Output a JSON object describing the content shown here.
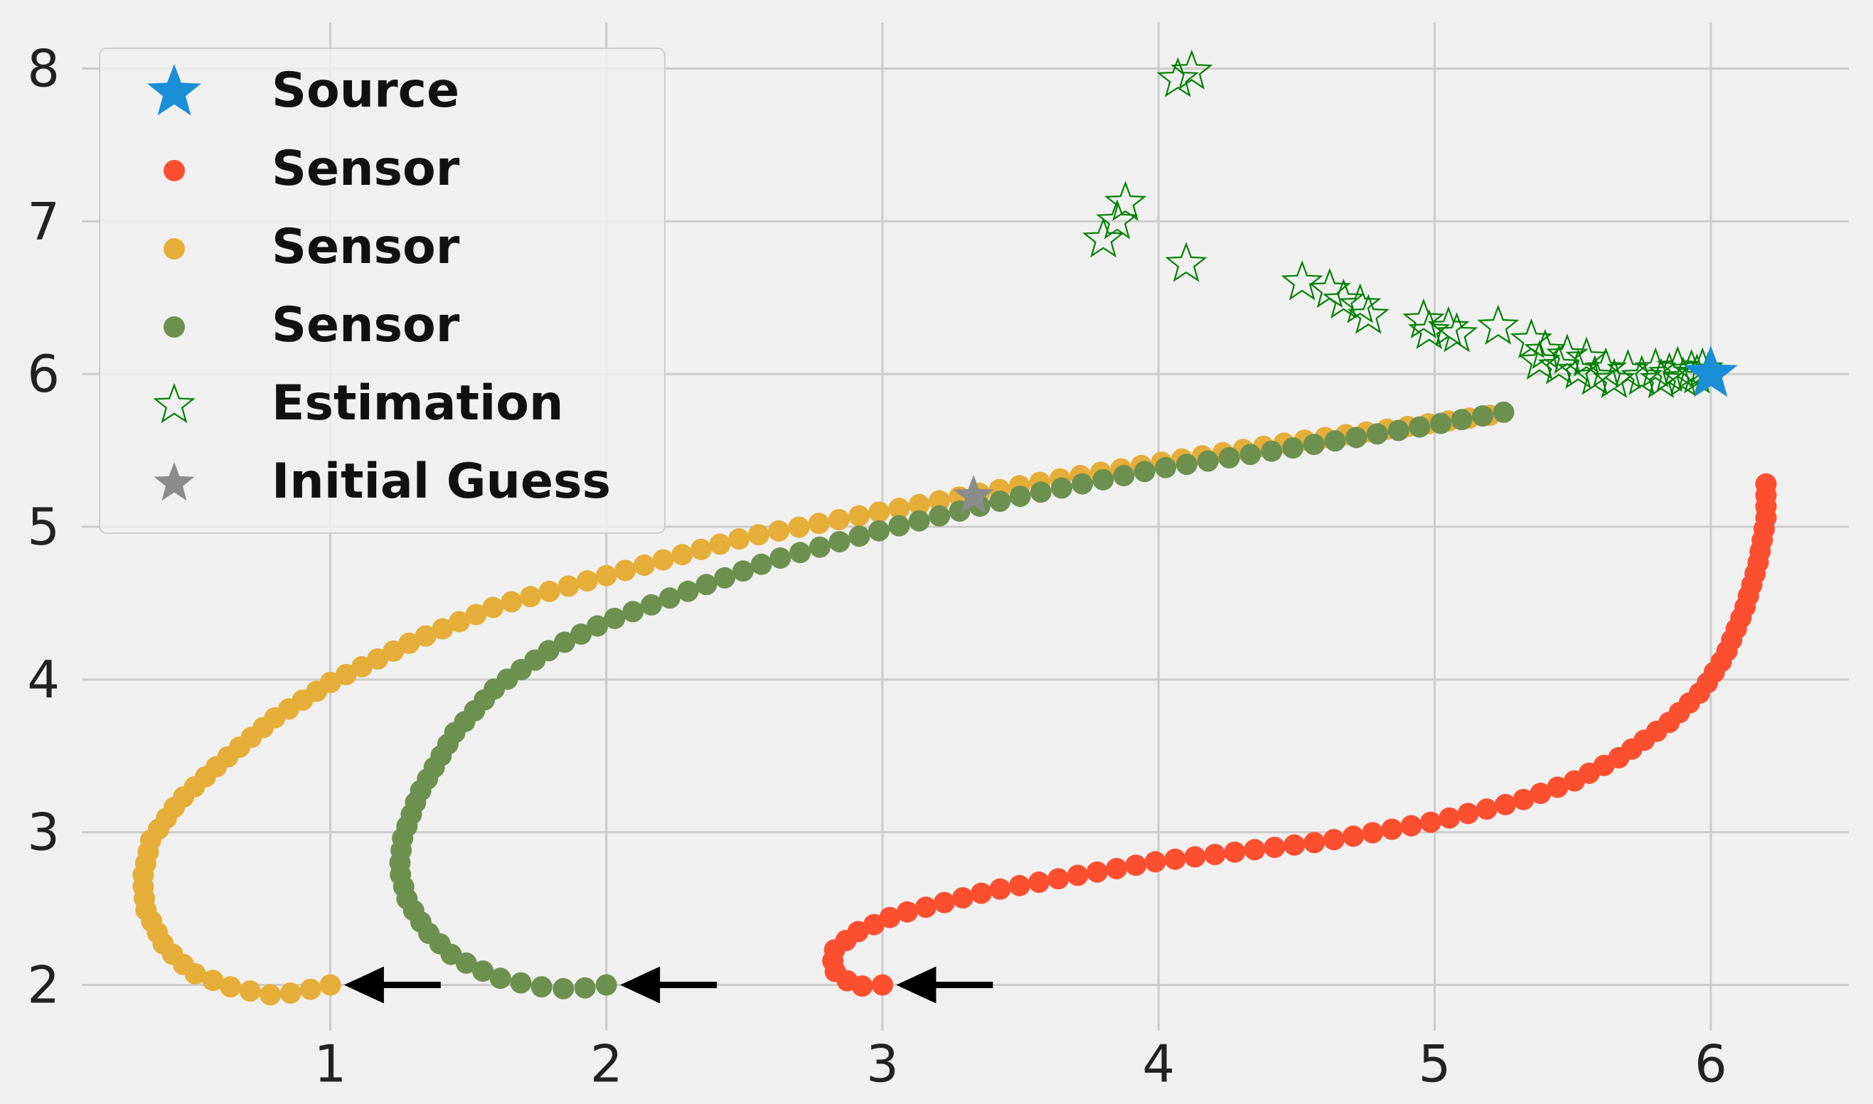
{
  "chart_data": {
    "type": "scatter",
    "xlim": [
      0.1,
      6.5
    ],
    "ylim": [
      1.7,
      8.3
    ],
    "x_ticks": [
      1,
      2,
      3,
      4,
      5,
      6
    ],
    "y_ticks": [
      2,
      3,
      4,
      5,
      6,
      7,
      8
    ],
    "x_tick_labels": [
      "1",
      "2",
      "3",
      "4",
      "5",
      "6"
    ],
    "y_tick_labels": [
      "2",
      "3",
      "4",
      "5",
      "6",
      "7",
      "8"
    ],
    "grid": true,
    "legend_position": "top-left",
    "colors": {
      "source": "#1a8fd8",
      "sensor_1": "#fc4f30",
      "sensor_2": "#e5ae38",
      "sensor_3": "#6d904f",
      "estimation": "#008000",
      "initial_guess": "#8b8b8b",
      "grid": "#cbcbcb",
      "background": "#f0f0f0"
    },
    "series": [
      {
        "name": "Source",
        "marker": "star-filled",
        "points": [
          [
            6.0,
            6.0
          ]
        ]
      },
      {
        "name": "Sensor",
        "marker": "circle",
        "color_key": "sensor_1",
        "anchors": [
          [
            3.0,
            2.0
          ],
          [
            2.9,
            1.99
          ],
          [
            2.82,
            2.1
          ],
          [
            2.82,
            2.22
          ],
          [
            2.9,
            2.34
          ],
          [
            3.05,
            2.46
          ],
          [
            3.4,
            2.62
          ],
          [
            4.0,
            2.81
          ],
          [
            4.6,
            2.94
          ],
          [
            5.0,
            3.07
          ],
          [
            5.3,
            3.2
          ],
          [
            5.5,
            3.33
          ],
          [
            5.68,
            3.5
          ],
          [
            5.85,
            3.72
          ],
          [
            5.97,
            3.93
          ],
          [
            6.05,
            4.15
          ],
          [
            6.12,
            4.45
          ],
          [
            6.17,
            4.75
          ],
          [
            6.2,
            5.05
          ],
          [
            6.2,
            5.28
          ]
        ],
        "count": 75
      },
      {
        "name": "Sensor",
        "marker": "circle",
        "color_key": "sensor_2",
        "anchors": [
          [
            1.0,
            2.0
          ],
          [
            0.9,
            1.96
          ],
          [
            0.8,
            1.93
          ],
          [
            0.65,
            1.98
          ],
          [
            0.5,
            2.08
          ],
          [
            0.4,
            2.25
          ],
          [
            0.33,
            2.5
          ],
          [
            0.32,
            2.7
          ],
          [
            0.35,
            2.95
          ],
          [
            0.45,
            3.2
          ],
          [
            0.6,
            3.45
          ],
          [
            0.8,
            3.75
          ],
          [
            1.0,
            3.98
          ],
          [
            1.3,
            4.25
          ],
          [
            1.6,
            4.48
          ],
          [
            2.0,
            4.68
          ],
          [
            2.5,
            4.93
          ],
          [
            3.0,
            5.1
          ],
          [
            3.5,
            5.27
          ],
          [
            4.0,
            5.42
          ],
          [
            4.5,
            5.56
          ],
          [
            5.0,
            5.68
          ],
          [
            5.2,
            5.73
          ]
        ],
        "count": 96
      },
      {
        "name": "Sensor",
        "marker": "circle",
        "color_key": "sensor_3",
        "anchors": [
          [
            2.0,
            2.0
          ],
          [
            1.88,
            1.97
          ],
          [
            1.75,
            1.99
          ],
          [
            1.6,
            2.05
          ],
          [
            1.45,
            2.18
          ],
          [
            1.35,
            2.35
          ],
          [
            1.28,
            2.55
          ],
          [
            1.25,
            2.75
          ],
          [
            1.26,
            2.95
          ],
          [
            1.32,
            3.25
          ],
          [
            1.45,
            3.65
          ],
          [
            1.6,
            3.95
          ],
          [
            1.8,
            4.2
          ],
          [
            2.0,
            4.38
          ],
          [
            2.3,
            4.58
          ],
          [
            2.6,
            4.78
          ],
          [
            3.0,
            4.98
          ],
          [
            3.5,
            5.2
          ],
          [
            4.0,
            5.38
          ],
          [
            4.5,
            5.52
          ],
          [
            5.0,
            5.67
          ],
          [
            5.25,
            5.75
          ]
        ],
        "count": 84
      },
      {
        "name": "Estimation",
        "marker": "star-hollow",
        "points": [
          [
            4.07,
            7.93
          ],
          [
            4.12,
            7.98
          ],
          [
            3.85,
            7.0
          ],
          [
            3.88,
            7.12
          ],
          [
            3.8,
            6.88
          ],
          [
            4.1,
            6.72
          ],
          [
            4.52,
            6.6
          ],
          [
            4.62,
            6.55
          ],
          [
            4.67,
            6.48
          ],
          [
            4.73,
            6.45
          ],
          [
            4.76,
            6.38
          ],
          [
            4.96,
            6.35
          ],
          [
            4.98,
            6.28
          ],
          [
            5.05,
            6.3
          ],
          [
            5.08,
            6.26
          ],
          [
            5.23,
            6.31
          ],
          [
            5.35,
            6.22
          ],
          [
            5.4,
            6.15
          ],
          [
            5.38,
            6.08
          ],
          [
            5.45,
            6.05
          ],
          [
            5.48,
            6.12
          ],
          [
            5.52,
            6.02
          ],
          [
            5.55,
            6.1
          ],
          [
            5.58,
            5.98
          ],
          [
            5.62,
            6.03
          ],
          [
            5.65,
            5.96
          ],
          [
            5.7,
            6.02
          ],
          [
            5.75,
            5.98
          ],
          [
            5.8,
            6.03
          ],
          [
            5.82,
            5.96
          ],
          [
            5.85,
            6.0
          ],
          [
            5.88,
            6.04
          ],
          [
            5.9,
            5.97
          ],
          [
            5.93,
            6.02
          ],
          [
            5.95,
            5.99
          ],
          [
            5.97,
            6.03
          ],
          [
            5.99,
            6.0
          ],
          [
            6.0,
            6.01
          ]
        ]
      },
      {
        "name": "Initial Guess",
        "marker": "star-filled",
        "points": [
          [
            3.33,
            5.2
          ]
        ]
      }
    ],
    "annotations": [
      {
        "type": "arrow",
        "from": [
          1.4,
          2.0
        ],
        "to": [
          1.05,
          2.0
        ]
      },
      {
        "type": "arrow",
        "from": [
          2.4,
          2.0
        ],
        "to": [
          2.05,
          2.0
        ]
      },
      {
        "type": "arrow",
        "from": [
          3.4,
          2.0
        ],
        "to": [
          3.05,
          2.0
        ]
      }
    ]
  },
  "legend": {
    "items": [
      {
        "label": "Source",
        "marker": "star-filled",
        "color_key": "source"
      },
      {
        "label": "Sensor",
        "marker": "circle",
        "color_key": "sensor_1"
      },
      {
        "label": "Sensor",
        "marker": "circle",
        "color_key": "sensor_2"
      },
      {
        "label": "Sensor",
        "marker": "circle",
        "color_key": "sensor_3"
      },
      {
        "label": "Estimation",
        "marker": "star-hollow",
        "color_key": "estimation"
      },
      {
        "label": "Initial Guess",
        "marker": "star-filled",
        "color_key": "initial_guess"
      }
    ]
  }
}
